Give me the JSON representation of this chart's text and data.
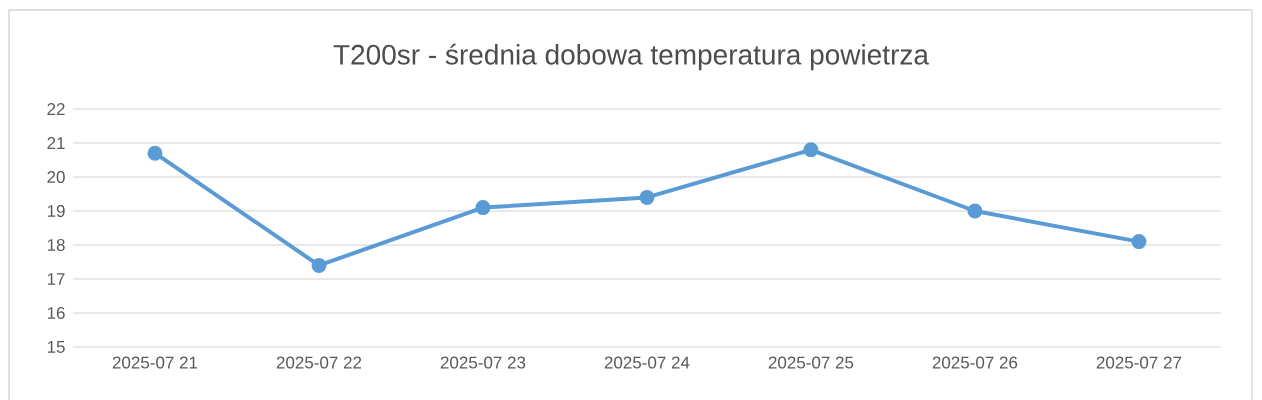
{
  "chart_data": {
    "type": "line",
    "title": "T200sr - średnia dobowa temperatura powietrza",
    "categories": [
      "2025-07 21",
      "2025-07 22",
      "2025-07 23",
      "2025-07 24",
      "2025-07 25",
      "2025-07 26",
      "2025-07 27"
    ],
    "series": [
      {
        "color": "#5b9bd5",
        "values": [
          20.7,
          17.4,
          19.1,
          19.4,
          20.8,
          19.0,
          18.1
        ]
      }
    ],
    "ylim": [
      15,
      22
    ],
    "yticks": [
      15,
      16,
      17,
      18,
      19,
      20,
      21,
      22
    ],
    "grid": "y",
    "marker": "circle",
    "line_style": "solid"
  }
}
